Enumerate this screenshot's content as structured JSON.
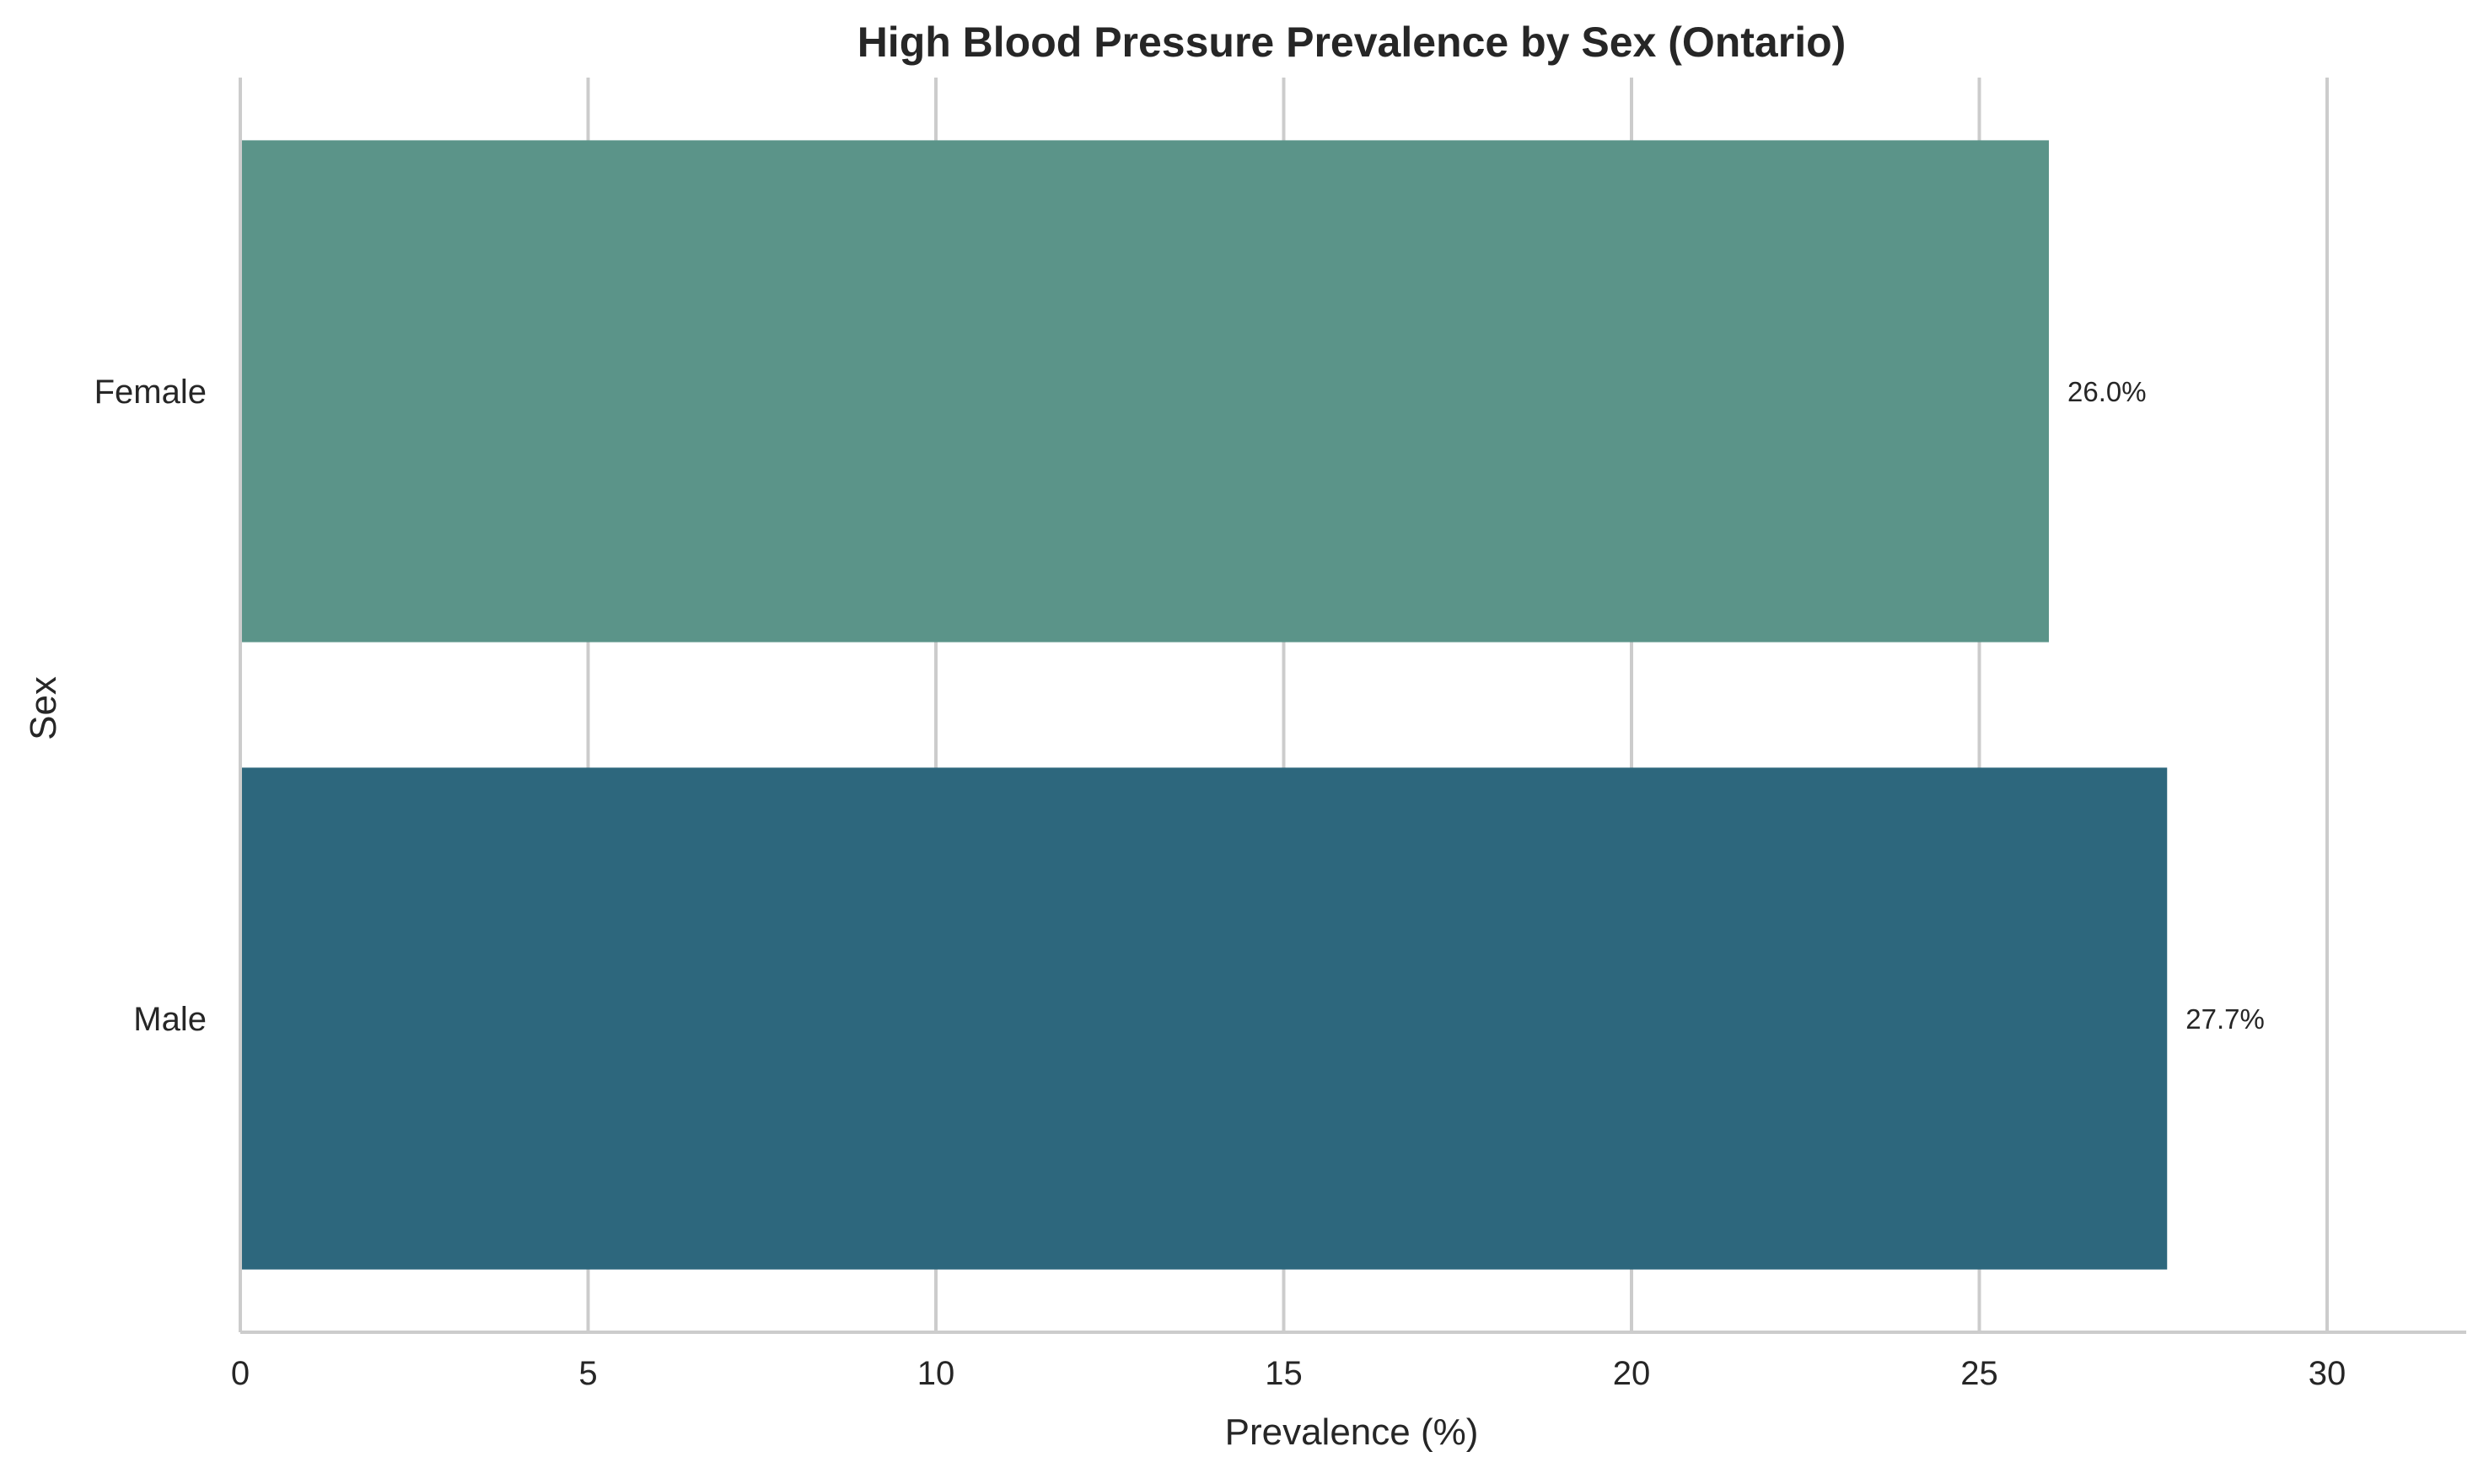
{
  "chart_data": {
    "type": "bar",
    "orientation": "horizontal",
    "title": "High Blood Pressure Prevalence by Sex (Ontario)",
    "xlabel": "Prevalence (%)",
    "ylabel": "Sex",
    "categories": [
      "Female",
      "Male"
    ],
    "values": [
      26.0,
      27.7
    ],
    "data_labels": [
      "26.0%",
      "27.7%"
    ],
    "colors": [
      "#5b9489",
      "#2d677d"
    ],
    "xlim": [
      0,
      32
    ],
    "xticks": [
      0,
      5,
      10,
      15,
      20,
      25,
      30
    ],
    "grid": "vertical",
    "legend": "none"
  },
  "style": {
    "grid_color": "#cccccc",
    "spine_color": "#cccccc",
    "text_color": "#262626",
    "title_color": "#262626"
  }
}
